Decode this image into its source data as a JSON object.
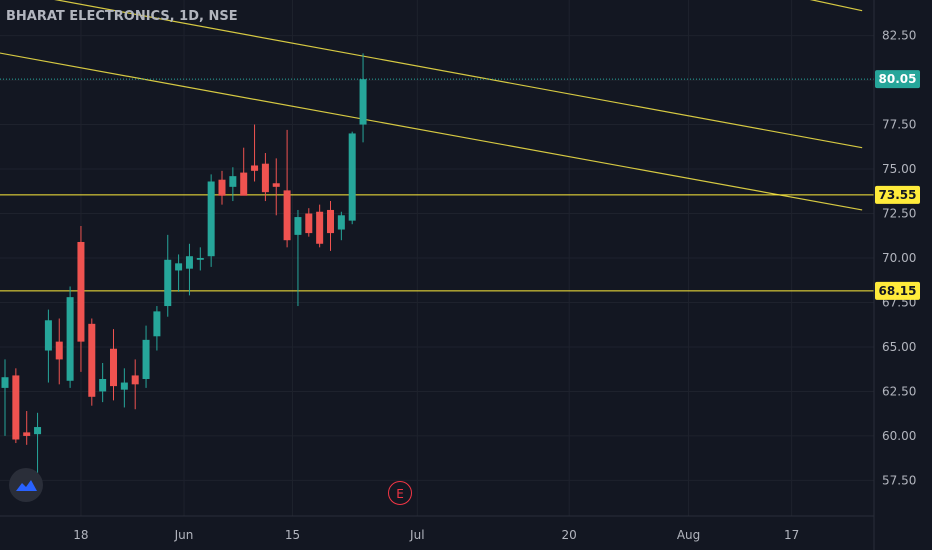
{
  "header": {
    "title": "BHARAT ELECTRONICS, 1D, NSE"
  },
  "event_marker": {
    "label": "E"
  },
  "logo": {
    "icon": "tradingview-logo-icon"
  },
  "colors": {
    "background": "#131722",
    "grid": "#1e222d",
    "up": "#26a69a",
    "down": "#ef5350",
    "trendline": "#d6c942",
    "level_tag": "#ffeb3b",
    "last_price": "#26a69a",
    "event": "#f23645",
    "axis_text": "#b2b5be"
  },
  "chart_data": {
    "type": "candlestick",
    "title": "BHARAT ELECTRONICS, 1D, NSE",
    "y_axis": {
      "side": "right",
      "ticks": [
        57.5,
        60.0,
        62.5,
        65.0,
        67.5,
        70.0,
        72.5,
        75.0,
        77.5,
        80.0,
        82.5
      ],
      "tick_labels": [
        "57.50",
        "60.00",
        "62.50",
        "65.00",
        "67.50",
        "70.00",
        "72.50",
        "75.00",
        "77.50",
        "80.00",
        "82.50"
      ],
      "range": [
        55.5,
        84.5
      ]
    },
    "x_axis": {
      "tick_labels": [
        "18",
        "Jun",
        "15",
        "Jul",
        "20",
        "Aug",
        "17"
      ]
    },
    "candles": [
      {
        "o": 62.7,
        "h": 64.3,
        "l": 60.0,
        "c": 63.3
      },
      {
        "o": 63.4,
        "h": 63.8,
        "l": 59.6,
        "c": 59.8
      },
      {
        "o": 60.2,
        "h": 61.4,
        "l": 59.5,
        "c": 60.0
      },
      {
        "o": 60.1,
        "h": 61.3,
        "l": 57.0,
        "c": 60.5
      },
      {
        "o": 64.8,
        "h": 67.1,
        "l": 63.0,
        "c": 66.5
      },
      {
        "o": 65.3,
        "h": 66.6,
        "l": 62.9,
        "c": 64.3
      },
      {
        "o": 63.1,
        "h": 68.4,
        "l": 62.7,
        "c": 67.8
      },
      {
        "o": 70.9,
        "h": 71.8,
        "l": 63.6,
        "c": 65.3
      },
      {
        "o": 66.3,
        "h": 66.6,
        "l": 61.7,
        "c": 62.2
      },
      {
        "o": 62.5,
        "h": 64.1,
        "l": 61.9,
        "c": 63.2
      },
      {
        "o": 64.9,
        "h": 66.0,
        "l": 62.0,
        "c": 62.8
      },
      {
        "o": 62.6,
        "h": 63.8,
        "l": 61.6,
        "c": 63.0
      },
      {
        "o": 63.4,
        "h": 64.3,
        "l": 61.5,
        "c": 62.9
      },
      {
        "o": 63.2,
        "h": 66.2,
        "l": 62.7,
        "c": 65.4
      },
      {
        "o": 65.6,
        "h": 67.3,
        "l": 64.8,
        "c": 67.0
      },
      {
        "o": 67.3,
        "h": 71.3,
        "l": 66.7,
        "c": 69.9
      },
      {
        "o": 69.3,
        "h": 70.2,
        "l": 68.1,
        "c": 69.7
      },
      {
        "o": 69.4,
        "h": 70.8,
        "l": 67.9,
        "c": 70.1
      },
      {
        "o": 69.9,
        "h": 70.6,
        "l": 69.3,
        "c": 70.0
      },
      {
        "o": 70.1,
        "h": 74.7,
        "l": 69.5,
        "c": 74.3
      },
      {
        "o": 74.4,
        "h": 74.9,
        "l": 73.0,
        "c": 73.5
      },
      {
        "o": 74.0,
        "h": 75.1,
        "l": 73.2,
        "c": 74.6
      },
      {
        "o": 74.8,
        "h": 76.2,
        "l": 73.7,
        "c": 73.5
      },
      {
        "o": 75.2,
        "h": 77.5,
        "l": 74.3,
        "c": 74.9
      },
      {
        "o": 75.3,
        "h": 75.9,
        "l": 73.2,
        "c": 73.7
      },
      {
        "o": 74.2,
        "h": 75.6,
        "l": 72.4,
        "c": 74.0
      },
      {
        "o": 73.8,
        "h": 77.2,
        "l": 70.6,
        "c": 71.0
      },
      {
        "o": 71.3,
        "h": 72.7,
        "l": 67.3,
        "c": 72.3
      },
      {
        "o": 72.5,
        "h": 72.8,
        "l": 71.2,
        "c": 71.4
      },
      {
        "o": 72.6,
        "h": 73.0,
        "l": 70.6,
        "c": 70.8
      },
      {
        "o": 72.7,
        "h": 73.2,
        "l": 70.4,
        "c": 71.4
      },
      {
        "o": 71.6,
        "h": 72.6,
        "l": 71.0,
        "c": 72.4
      },
      {
        "o": 72.1,
        "h": 77.1,
        "l": 71.9,
        "c": 77.0
      },
      {
        "o": 77.5,
        "h": 81.5,
        "l": 76.5,
        "c": 80.05
      }
    ],
    "horizontal_levels": [
      {
        "value": 73.55,
        "label": "73.55"
      },
      {
        "value": 68.15,
        "label": "68.15"
      }
    ],
    "last_price": {
      "value": 80.05,
      "label": "80.05"
    },
    "trendlines": [
      {
        "from_bar": -5.0,
        "from_value": 85.6,
        "to_bar": 79.0,
        "to_value": 76.2
      },
      {
        "from_bar": -3.0,
        "from_value": 81.8,
        "to_bar": 79.0,
        "to_value": 72.7
      },
      {
        "from_bar": 64.5,
        "from_value": 85.8,
        "to_bar": 79.0,
        "to_value": 83.9
      }
    ],
    "grid": true
  }
}
